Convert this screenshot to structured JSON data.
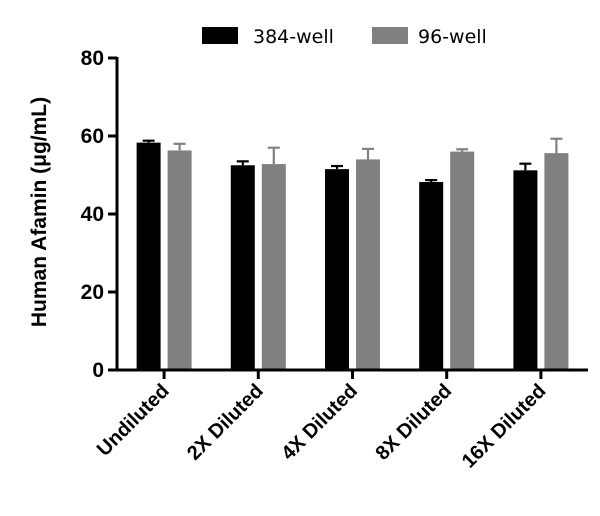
{
  "chart_data": {
    "type": "bar",
    "title": "",
    "xlabel": "",
    "ylabel": "Human Afamin (μg/mL)",
    "ylim": [
      0,
      80
    ],
    "yticks": [
      0,
      20,
      40,
      60,
      80
    ],
    "grid": false,
    "legend_position": "top",
    "categories": [
      "Undiluted",
      "2X Diluted",
      "4X Diluted",
      "8X Diluted",
      "16X Diluted"
    ],
    "series": [
      {
        "name": "384-well",
        "color": "#000000",
        "values": [
          58.3,
          52.5,
          51.5,
          48.2,
          51.2
        ],
        "errors": [
          0.5,
          1.0,
          0.8,
          0.5,
          1.7
        ]
      },
      {
        "name": "96-well",
        "color": "#808080",
        "values": [
          56.3,
          52.8,
          54.0,
          56.0,
          55.6
        ],
        "errors": [
          1.7,
          4.2,
          2.7,
          0.6,
          3.7
        ]
      }
    ]
  }
}
